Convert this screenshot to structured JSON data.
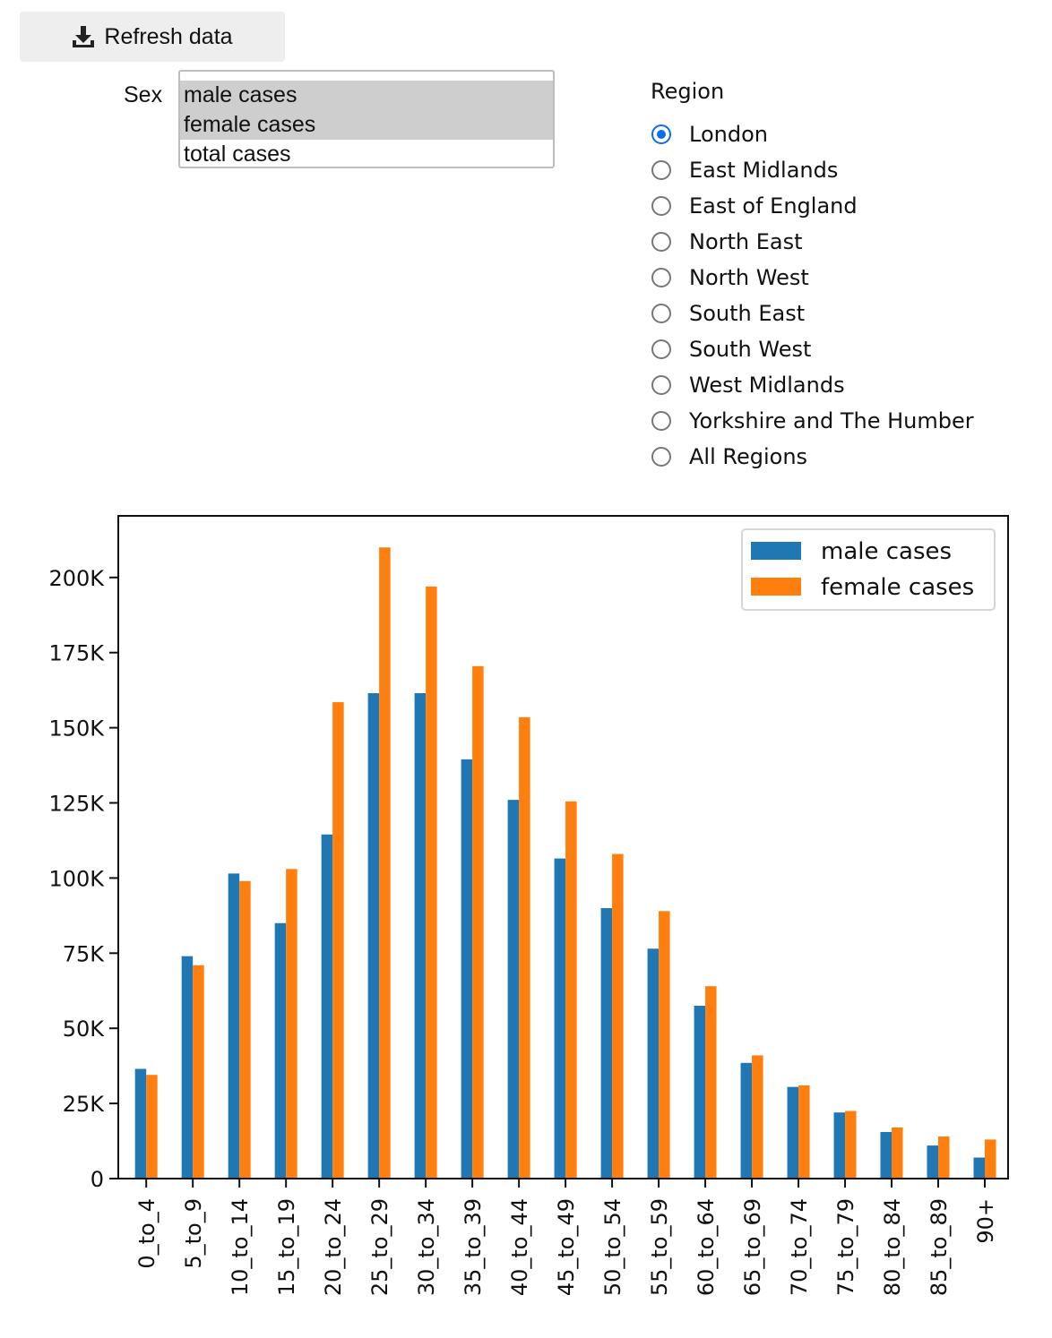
{
  "toolbar": {
    "refresh_label": "Refresh data",
    "refresh_icon": "download-icon"
  },
  "sex": {
    "label": "Sex",
    "options": [
      {
        "label": "male cases",
        "selected": true
      },
      {
        "label": "female cases",
        "selected": true
      },
      {
        "label": "total cases",
        "selected": false
      }
    ]
  },
  "region": {
    "label": "Region",
    "selected": "London",
    "options": [
      "London",
      "East Midlands",
      "East of England",
      "North East",
      "North West",
      "South East",
      "South West",
      "West Midlands",
      "Yorkshire and The Humber",
      "All Regions"
    ]
  },
  "chart_data": {
    "type": "bar",
    "categories": [
      "0_to_4",
      "5_to_9",
      "10_to_14",
      "15_to_19",
      "20_to_24",
      "25_to_29",
      "30_to_34",
      "35_to_39",
      "40_to_44",
      "45_to_49",
      "50_to_54",
      "55_to_59",
      "60_to_64",
      "65_to_69",
      "70_to_74",
      "75_to_79",
      "80_to_84",
      "85_to_89",
      "90+"
    ],
    "series": [
      {
        "name": "male cases",
        "color": "#1f77b4",
        "values": [
          36500,
          74000,
          101500,
          85000,
          114500,
          161500,
          161500,
          139500,
          126000,
          106500,
          90000,
          76500,
          57500,
          38500,
          30500,
          22000,
          15500,
          11000,
          7000
        ]
      },
      {
        "name": "female cases",
        "color": "#ff7f0e",
        "values": [
          34500,
          71000,
          99000,
          103000,
          158500,
          210000,
          197000,
          170500,
          153500,
          125500,
          108000,
          89000,
          64000,
          41000,
          31000,
          22500,
          17000,
          14000,
          13000
        ]
      }
    ],
    "yticks": [
      0,
      25000,
      50000,
      75000,
      100000,
      125000,
      150000,
      175000,
      200000
    ],
    "ytick_labels": [
      "0",
      "25K",
      "50K",
      "75K",
      "100K",
      "125K",
      "150K",
      "175K",
      "200K"
    ],
    "ylim": [
      0,
      220500
    ],
    "legend": "upper right",
    "grid": false,
    "xlabel": "",
    "ylabel": "",
    "title": ""
  }
}
